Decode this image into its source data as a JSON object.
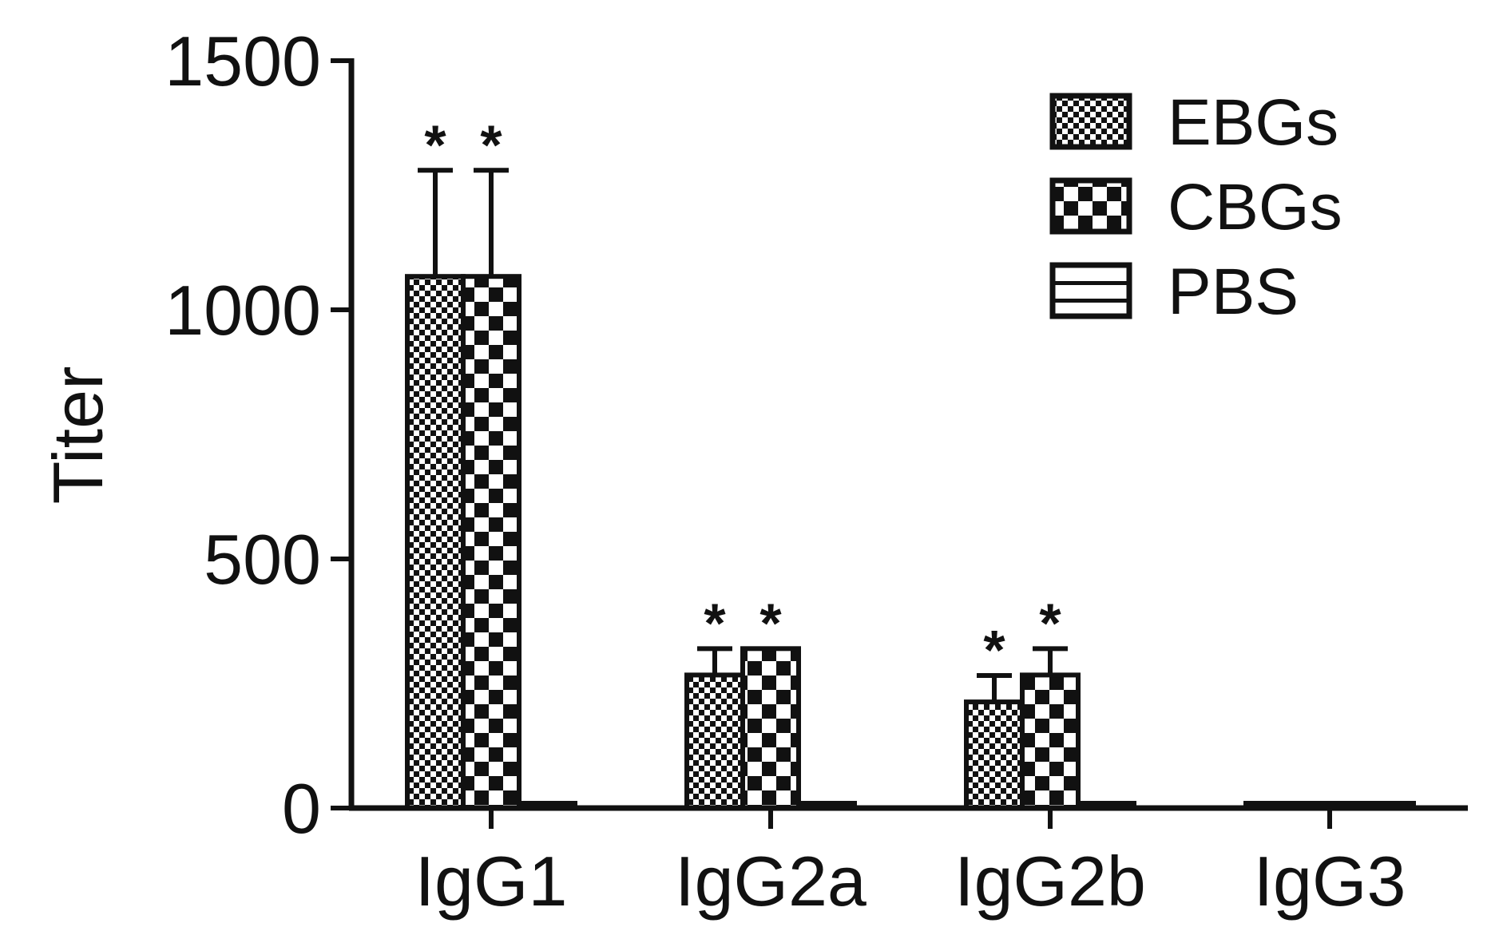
{
  "chart_data": {
    "type": "bar",
    "ylabel": "Titer",
    "xlabel": "",
    "ylim": [
      0,
      1500
    ],
    "yticks": [
      0,
      500,
      1000,
      1500
    ],
    "categories": [
      "IgG1",
      "IgG2a",
      "IgG2b",
      "IgG3"
    ],
    "series": [
      {
        "name": "EBGs",
        "values": [
          1067,
          267,
          213,
          0
        ],
        "errors": [
          213,
          53,
          53,
          0
        ],
        "significant": [
          true,
          true,
          true,
          false
        ]
      },
      {
        "name": "CBGs",
        "values": [
          1067,
          320,
          267,
          0
        ],
        "errors": [
          213,
          0,
          53,
          0
        ],
        "significant": [
          true,
          true,
          true,
          false
        ]
      },
      {
        "name": "PBS",
        "values": [
          0,
          0,
          0,
          0
        ],
        "errors": [
          0,
          0,
          0,
          0
        ],
        "significant": [
          false,
          false,
          false,
          false
        ]
      }
    ],
    "annotation_symbol": "*",
    "legend_position": "top-right",
    "grid": false
  }
}
